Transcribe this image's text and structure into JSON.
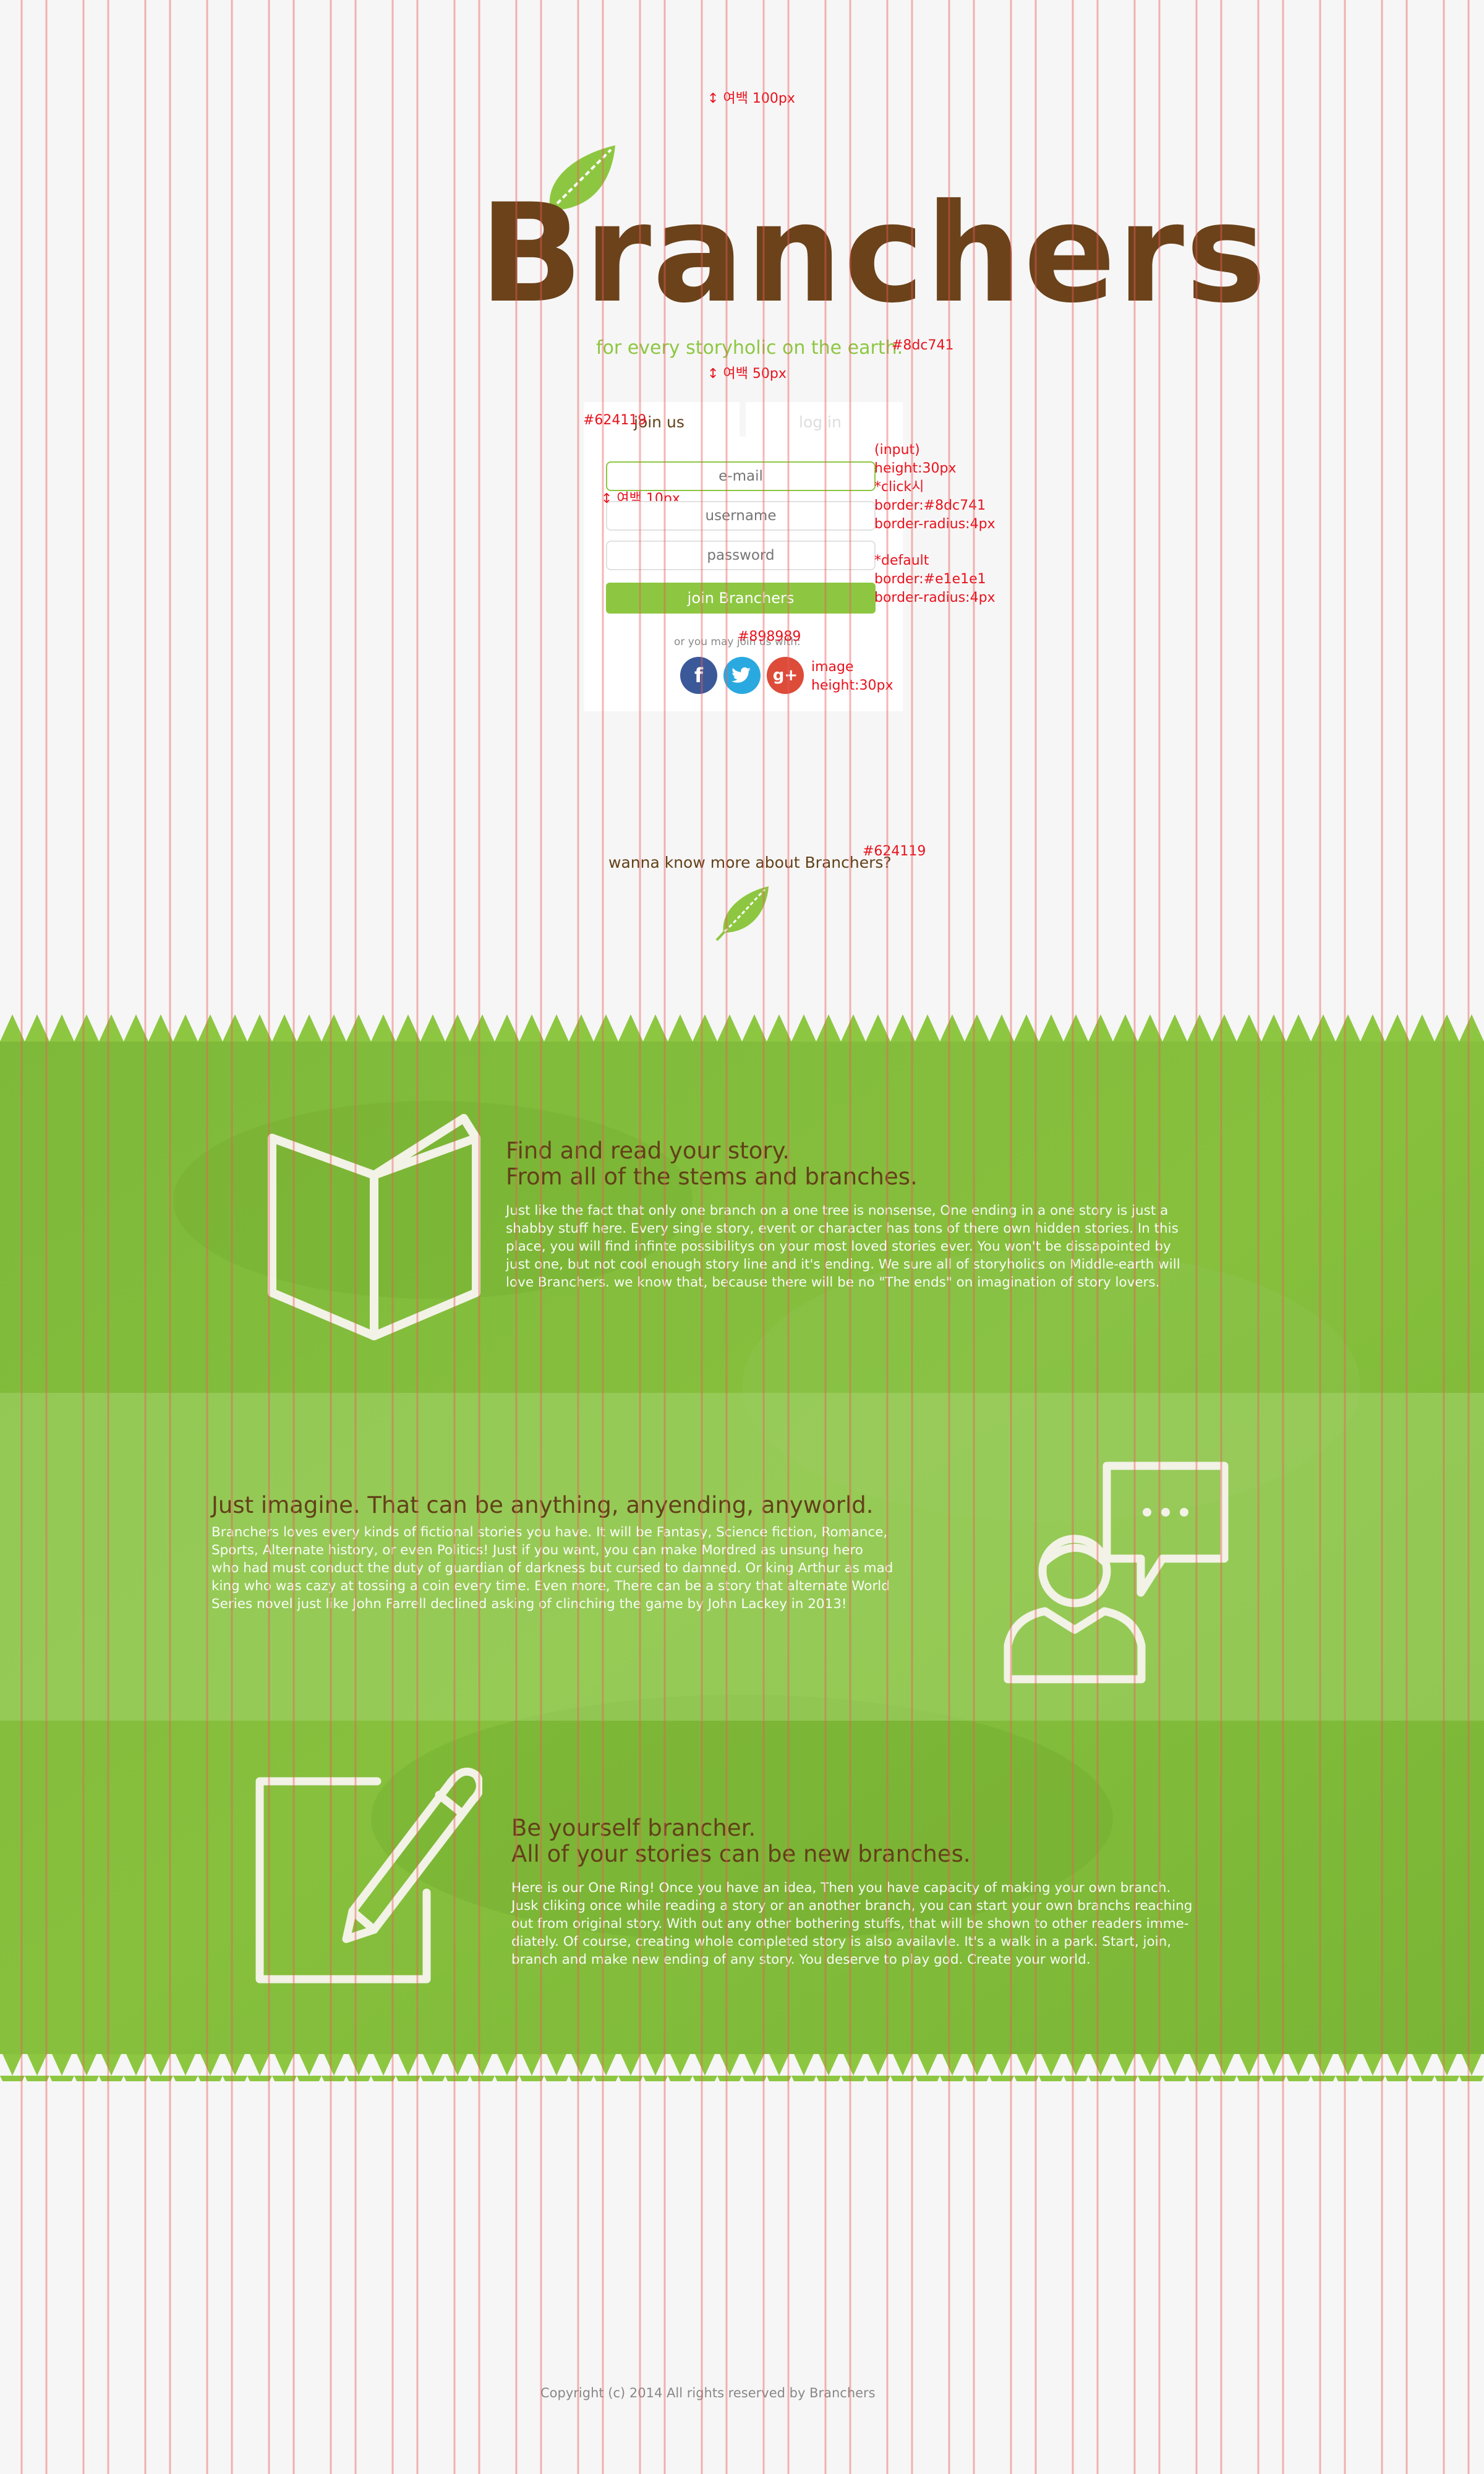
{
  "colors": {
    "brand_green": "#8dc741",
    "brown": "#624119",
    "input_border": "#e1e1e1",
    "annotation_red": "#e8121d",
    "muted_text": "#898989",
    "facebook": "#3b5998",
    "twitter": "#2aa9e0",
    "google_plus": "#dd4b39"
  },
  "header": {
    "logo": "Branchers",
    "tagline": "for every storyholic on the earth."
  },
  "auth": {
    "tab_join": "join us",
    "tab_login": "log in",
    "email_placeholder": "e-mail",
    "username_placeholder": "username",
    "password_placeholder": "password",
    "join_button": "join Branchers",
    "social_prompt": "or you may join us with:",
    "social": [
      {
        "name": "facebook",
        "glyph": "f"
      },
      {
        "name": "twitter",
        "glyph": "t"
      },
      {
        "name": "google-plus",
        "glyph": "g+"
      }
    ]
  },
  "more": {
    "text": "wanna know more about Branchers?"
  },
  "features": [
    {
      "title_line1": "Find and read your story.",
      "title_line2": "From all of the stems and branches.",
      "body": [
        "Just like the fact that only one branch on a one tree is nonsense, One ending in a one story is just a",
        "shabby stuff here. Every single story, event or character has tons of there own hidden stories. In this",
        "place, you will find infinte possibilitys on your most loved stories ever. You won't be dissapointed by",
        "just one, but not cool enough story line and it's ending. We sure all of storyholics on Middle-earth will",
        "love Branchers. we know that, because there will be no \"The ends\" on imagination of story lovers."
      ],
      "icon": "book-icon"
    },
    {
      "title_line1": "Just imagine. That can be anything, anyending, anyworld.",
      "body": [
        "Branchers loves every kinds of fictional stories you have. It will be Fantasy, Science fiction, Romance,",
        "Sports, Alternate history, or even Politics! Just if you want, you can make Mordred as unsung hero",
        "who had must conduct the duty of guardian of darkness but cursed to damned. Or king Arthur as mad",
        "king who was cazy at tossing a coin every time. Even more, There can be a story that alternate World",
        "Series novel just like John Farrell declined asking of clinching the game by John Lackey in 2013!"
      ],
      "icon": "person-speech-icon"
    },
    {
      "title_line1": "Be yourself brancher.",
      "title_line2": "All of your stories can be new branches.",
      "body": [
        "Here is our One Ring! Once you have an idea, Then you have capacity of making your own branch.",
        "Jusk cliking once while reading a story or an another branch, you can start your own branchs reaching",
        "out from original story. With out any other bothering stuffs, that will be shown to other readers imme-",
        "diately. Of course, creating whole completed story is also availavle. It's a walk in a park. Start, join,",
        "branch and make new ending of any story. You deserve to play god. Create your world."
      ],
      "icon": "pencil-edit-icon"
    }
  ],
  "footer": {
    "copyright": "Copyright (c) 2014 All rights reserved by Branchers"
  },
  "annotations": {
    "margin_top": "↕ 여백 100px",
    "tagline_color": "#8dc741",
    "margin_50": "↕ 여백 50px",
    "tab_color": "#624119",
    "margin_10": "↕ 여백 10px",
    "input_spec": [
      "(input)",
      "height:30px",
      "*click시",
      "border:#8dc741",
      "border-radius:4px"
    ],
    "default_spec": [
      "*default",
      "border:#e1e1e1",
      "border-radius:4px"
    ],
    "social_color": "#898989",
    "image_spec": [
      "image",
      "height:30px"
    ],
    "more_color": "#624119"
  }
}
